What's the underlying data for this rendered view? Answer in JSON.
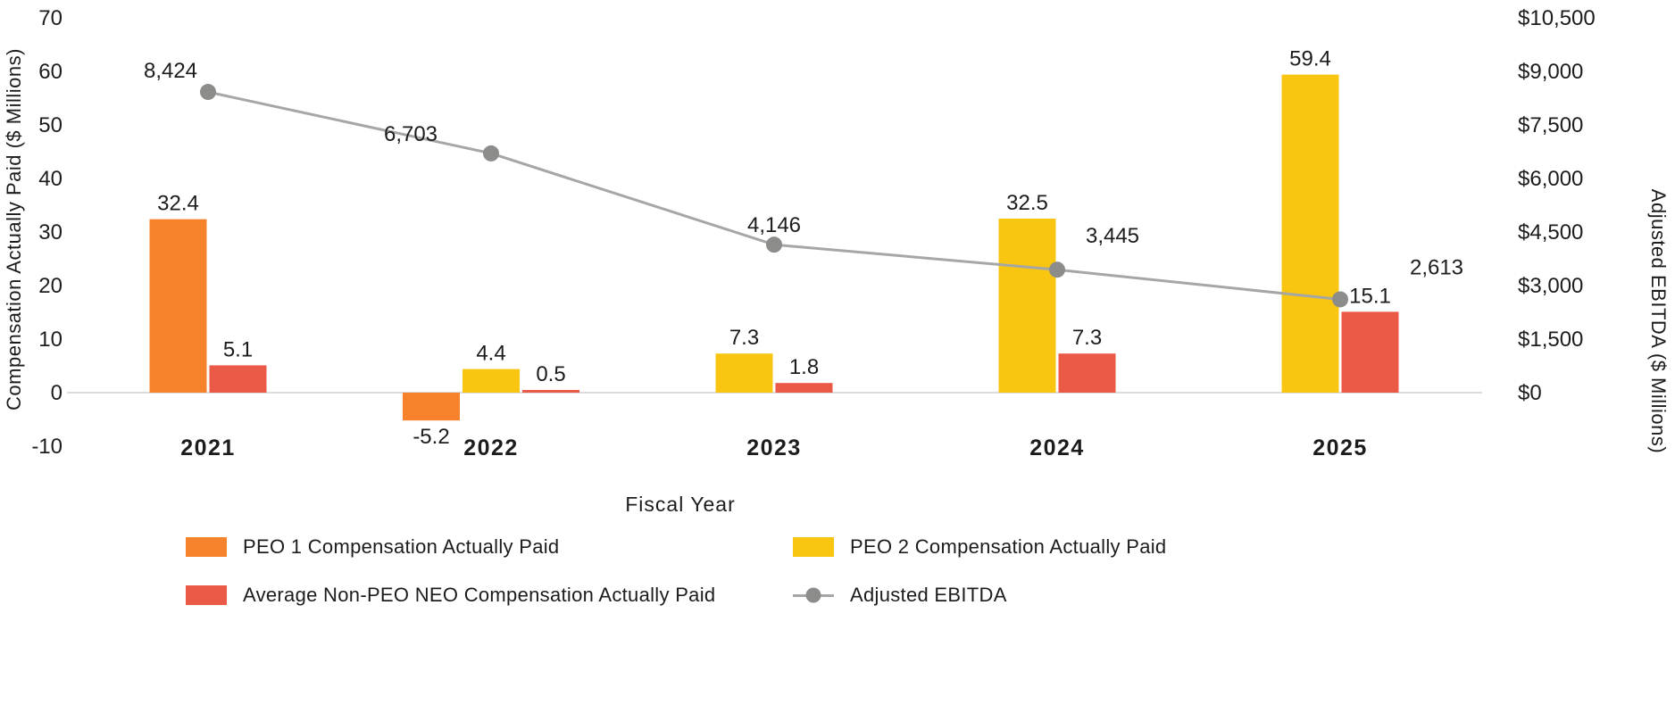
{
  "chart_data": {
    "type": "bar",
    "subtype": "combo-bar-line",
    "title": "",
    "categories": [
      "2021",
      "2022",
      "2023",
      "2024",
      "2025"
    ],
    "x_axis": {
      "title": "Fiscal Year"
    },
    "left_axis": {
      "title": "Compensation Actually Paid ($ Millions)",
      "min": -10,
      "max": 70,
      "ticks": [
        70,
        60,
        50,
        40,
        30,
        20,
        10,
        0,
        -10
      ],
      "tick_labels": [
        "70",
        "60",
        "50",
        "40",
        "30",
        "20",
        "10",
        "0",
        "-10"
      ]
    },
    "right_axis": {
      "title": "Adjusted EBITDA ($ Millions)",
      "min": 0,
      "max": 10500,
      "ticks": [
        10500,
        9000,
        7500,
        6000,
        4500,
        3000,
        1500,
        0
      ],
      "tick_labels": [
        "$10,500",
        "$9,000",
        "$7,500",
        "$6,000",
        "$4,500",
        "$3,000",
        "$1,500",
        "$0"
      ]
    },
    "series": [
      {
        "id": "peo1",
        "name": "PEO 1 Compensation Actually Paid",
        "type": "bar",
        "axis": "left",
        "color": "#F6832B",
        "values": [
          32.4,
          -5.2,
          null,
          null,
          null
        ],
        "labels": [
          "32.4",
          "-5.2",
          "",
          "",
          ""
        ]
      },
      {
        "id": "peo2",
        "name": "PEO 2 Compensation Actually Paid",
        "type": "bar",
        "axis": "left",
        "color": "#F8C610",
        "values": [
          null,
          4.4,
          7.3,
          32.5,
          59.4
        ],
        "labels": [
          "",
          "4.4",
          "7.3",
          "32.5",
          "59.4"
        ]
      },
      {
        "id": "neo",
        "name": "Average Non-PEO NEO Compensation Actually Paid",
        "type": "bar",
        "axis": "left",
        "color": "#EA5A47",
        "values": [
          5.1,
          0.5,
          1.8,
          7.3,
          15.1
        ],
        "labels": [
          "5.1",
          "0.5",
          "1.8",
          "7.3",
          "15.1"
        ]
      },
      {
        "id": "ebitda",
        "name": "Adjusted EBITDA",
        "type": "line",
        "axis": "right",
        "color": "#A6A6A5",
        "marker_color": "#8C8C8B",
        "values": [
          8424,
          6703,
          4146,
          3445,
          2613
        ],
        "labels": [
          "8,424",
          "6,703",
          "4,146",
          "3,445",
          "2,613"
        ]
      }
    ],
    "legend_position": "bottom",
    "grid": "off",
    "colors": {
      "text": "#1C1C1C",
      "baseline": "#DCDCDC"
    }
  }
}
